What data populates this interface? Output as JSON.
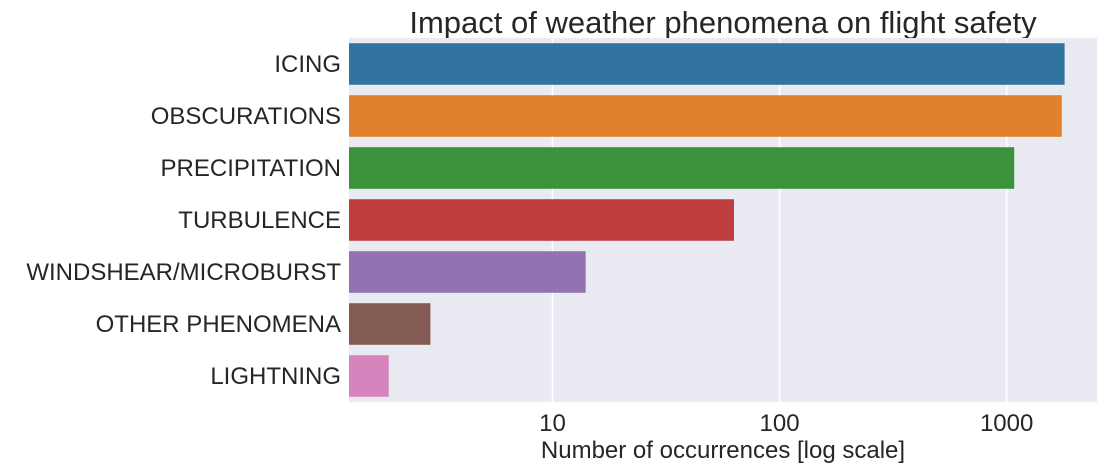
{
  "chart_data": {
    "type": "bar",
    "orientation": "horizontal",
    "title": "Impact of weather phenomena on flight safety",
    "xlabel": "Number of occurrences [log scale]",
    "ylabel": "",
    "xscale": "log",
    "xlim": [
      1.27,
      2500
    ],
    "xticks": [
      10,
      100,
      1000
    ],
    "xtick_labels": [
      "10",
      "100",
      "1000"
    ],
    "grid": true,
    "categories": [
      "ICING",
      "OBSCURATIONS",
      "PRECIPITATION",
      "TURBULENCE",
      "WINDSHEAR/MICROBURST",
      "OTHER PHENOMENA",
      "LIGHTNING"
    ],
    "values": [
      1800,
      1750,
      1080,
      63,
      14,
      2.9,
      1.9
    ],
    "colors": [
      "#3274a1",
      "#e1812c",
      "#3a923a",
      "#c03d3e",
      "#9372b2",
      "#845b53",
      "#d684bd"
    ],
    "background": "#eaeaf2"
  }
}
